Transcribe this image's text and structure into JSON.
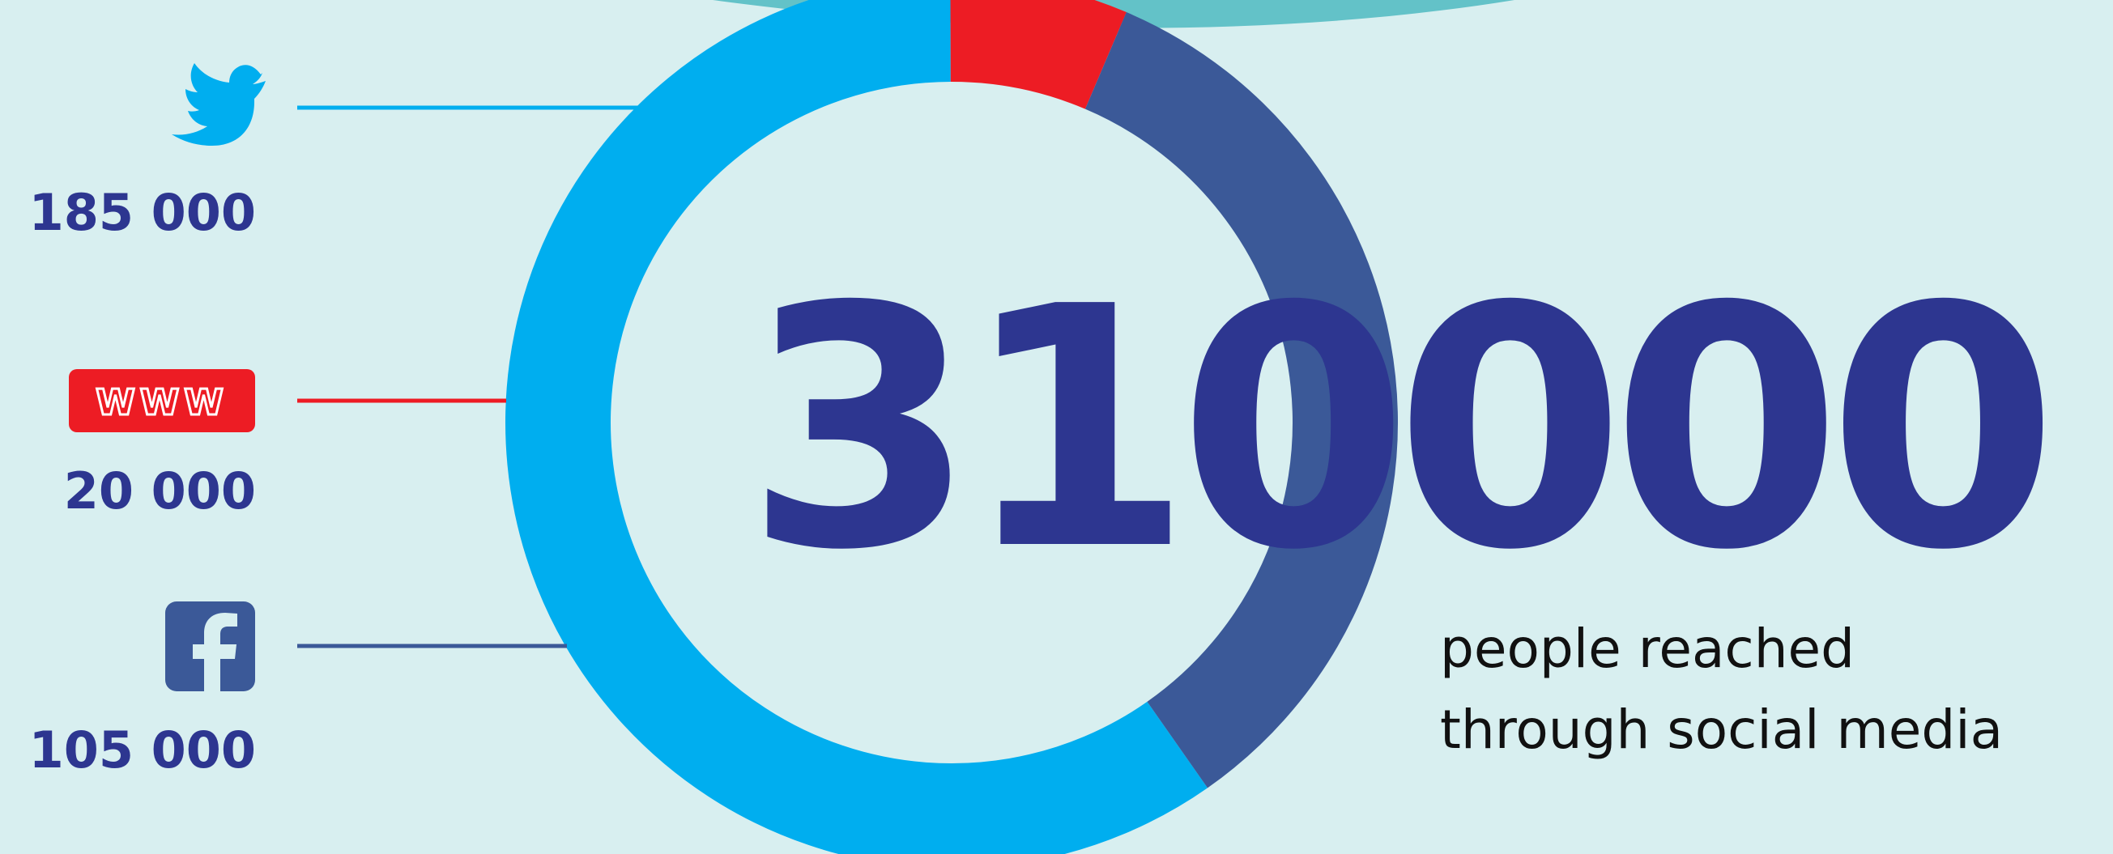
{
  "colors": {
    "background": "#d8eff0",
    "twitter": "#00aeef",
    "www": "#ed1c24",
    "facebook": "#3b5998",
    "text_dark": "#2d3690",
    "top_arc": "#63c2c8"
  },
  "total": {
    "value": "310000",
    "caption_line1": "people reached",
    "caption_line2": "through social media"
  },
  "icons": {
    "twitter": "twitter-bird-icon",
    "www": "www-icon",
    "facebook": "facebook-f-icon",
    "www_label": "WWW"
  },
  "chart_data": {
    "type": "pie",
    "style": "donut",
    "total": 310000,
    "categories": [
      "Twitter",
      "WWW",
      "Facebook"
    ],
    "values": [
      185000,
      20000,
      105000
    ],
    "labels": [
      "185 000",
      "20 000",
      "105 000"
    ],
    "colors": [
      "#00aeef",
      "#ed1c24",
      "#3b5998"
    ]
  }
}
